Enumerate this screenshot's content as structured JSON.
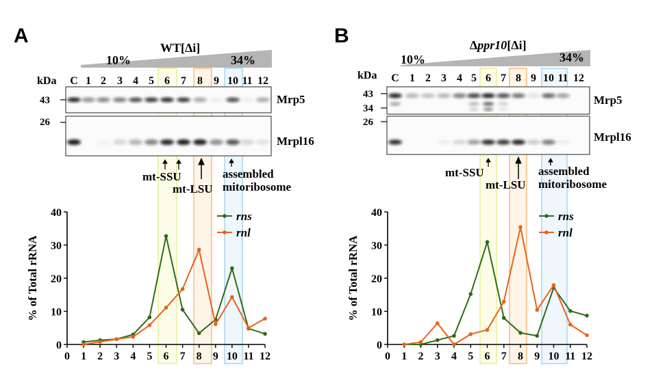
{
  "colors": {
    "rns": "#2e6b1a",
    "rnl": "#e8621a",
    "ssu_box": "#e6ee8a",
    "lsu_box": "#f3b774",
    "mito_box": "#9fd0ee",
    "gradient": "#b5b5b5"
  },
  "panels": [
    {
      "letter": "A",
      "strain_prefix": "WT",
      "strain_suffix": "[Δi]",
      "grad_low": "10%",
      "grad_high": "34%",
      "kda_label": "kDa",
      "lane_labels": [
        "C",
        "1",
        "2",
        "3",
        "4",
        "5",
        "6",
        "7",
        "8",
        "9",
        "10",
        "11",
        "12"
      ],
      "markers_mrp5": [
        "43"
      ],
      "markers_mrpl16": [
        "26"
      ],
      "blot1_label": "Mrp5",
      "blot2_label": "Mrpl16",
      "arrow_ssu": "mt-SSU",
      "arrow_lsu": "mt-LSU",
      "arrow_mito_1": "assembled",
      "arrow_mito_2": "mitoribosome"
    },
    {
      "letter": "B",
      "strain_prefix": "Δ",
      "strain_italic": "ppr10",
      "strain_suffix": "[Δi]",
      "grad_low": "10%",
      "grad_high": "34%",
      "kda_label": "kDa",
      "lane_labels": [
        "C",
        "1",
        "2",
        "3",
        "4",
        "5",
        "6",
        "7",
        "8",
        "9",
        "10",
        "11",
        "12"
      ],
      "markers_mrp5": [
        "43",
        "34"
      ],
      "markers_mrpl16": [
        "26"
      ],
      "blot1_label": "Mrp5",
      "blot2_label": "Mrpl16",
      "arrow_ssu": "mt-SSU",
      "arrow_lsu": "mt-LSU",
      "arrow_mito_1": "assembled",
      "arrow_mito_2": "mitoribosome"
    }
  ],
  "chart_data": [
    {
      "type": "line",
      "panel": "A",
      "ylabel": "% of Total rRNA",
      "xlabel": "",
      "xlim": [
        0,
        12
      ],
      "ylim": [
        0,
        40
      ],
      "x_ticks": [
        "0",
        "1",
        "2",
        "3",
        "4",
        "5",
        "6",
        "7",
        "8",
        "9",
        "10",
        "11",
        "12"
      ],
      "y_ticks": [
        "0",
        "10",
        "20",
        "30",
        "40"
      ],
      "x": [
        1,
        2,
        3,
        4,
        5,
        6,
        7,
        8,
        9,
        10,
        11,
        12
      ],
      "series": [
        {
          "name": "rns",
          "values": [
            0.7,
            1.3,
            1.6,
            3.0,
            8.2,
            32.7,
            10.5,
            3.4,
            7.5,
            23.0,
            4.8,
            3.2
          ]
        },
        {
          "name": "rnl",
          "values": [
            0.0,
            0.8,
            1.6,
            2.3,
            5.8,
            11.1,
            16.7,
            28.6,
            6.1,
            14.3,
            5.0,
            7.8
          ]
        }
      ],
      "legend_position": "top-right",
      "highlight_fractions": [
        6,
        8,
        10
      ]
    },
    {
      "type": "line",
      "panel": "B",
      "ylabel": "% of Total rRNA",
      "xlabel": "",
      "xlim": [
        0,
        12
      ],
      "ylim": [
        0,
        40
      ],
      "x_ticks": [
        "0",
        "1",
        "2",
        "3",
        "4",
        "5",
        "6",
        "7",
        "8",
        "9",
        "10",
        "11",
        "12"
      ],
      "y_ticks": [
        "0",
        "10",
        "20",
        "30",
        "40"
      ],
      "x": [
        1,
        2,
        3,
        4,
        5,
        6,
        7,
        8,
        9,
        10,
        11,
        12
      ],
      "series": [
        {
          "name": "rns",
          "values": [
            0.0,
            0.0,
            1.3,
            2.6,
            15.2,
            30.9,
            8.0,
            3.5,
            2.6,
            17.1,
            10.1,
            8.7
          ]
        },
        {
          "name": "rnl",
          "values": [
            0.0,
            0.7,
            6.4,
            0.0,
            3.1,
            4.4,
            12.9,
            35.4,
            10.4,
            17.9,
            6.0,
            2.8
          ]
        }
      ],
      "legend_position": "top-right",
      "highlight_fractions": [
        6,
        8,
        10
      ]
    }
  ]
}
